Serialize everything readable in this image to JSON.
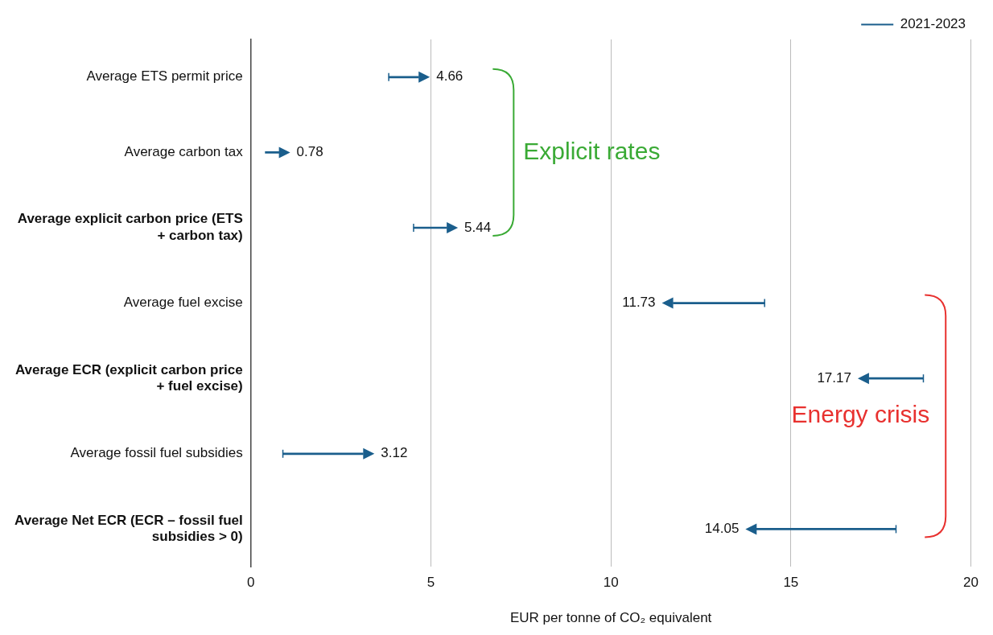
{
  "chart_data": {
    "type": "bar",
    "orientation": "horizontal",
    "categories": [
      "Average ETS permit price",
      "Average carbon tax",
      "Average explicit carbon price (ETS + carbon tax)",
      "Average fuel excise",
      "Average ECR (explicit carbon price + fuel excise)",
      "Average fossil fuel subsidies",
      "Average Net ECR (ECR – fossil fuel subsidies > 0)"
    ],
    "series": [
      {
        "name": "2021-2023",
        "color": "#1a5e8c",
        "base": [
          3.83,
          0.4,
          4.52,
          14.27,
          18.68,
          0.89,
          17.92
        ],
        "values": [
          0.83,
          0.38,
          0.92,
          -2.54,
          -1.51,
          2.23,
          -3.87
        ],
        "value_labels": [
          "4.66",
          "0.78",
          "5.44",
          "11.73",
          "17.17",
          "3.12",
          "14.05"
        ]
      }
    ],
    "xlabel": "EUR per tonne of CO₂ equivalent",
    "xlim": [
      0,
      20
    ],
    "xticks": [
      0,
      5,
      10,
      15,
      20
    ],
    "grid": "x",
    "legend": "top right",
    "annotations": [
      "Explicit rates",
      "Energy crisis"
    ]
  }
}
